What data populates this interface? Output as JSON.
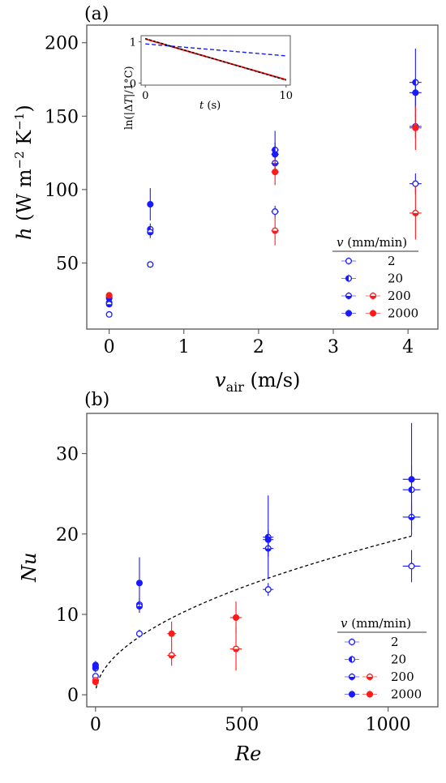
{
  "colors": {
    "blue": "#1a1aff",
    "red": "#ff1a1a",
    "axis": "#555555"
  },
  "chart_data": [
    {
      "panel": "(a)",
      "type": "scatter",
      "xlabel": "v_air (m/s)",
      "ylabel": "h (W m^-2 K^-1)",
      "xlim": [
        -0.3,
        4.4
      ],
      "ylim": [
        5,
        212
      ],
      "xticks": [
        0,
        1,
        2,
        3,
        4
      ],
      "yticks": [
        50,
        100,
        150,
        200
      ],
      "legend": {
        "title": "v (mm/min)",
        "position": "bottom-right",
        "entries": [
          "2",
          "20",
          "200",
          "2000"
        ]
      },
      "series": [
        {
          "name": "2",
          "marker": "open",
          "color": "blue",
          "points": [
            {
              "x": 0,
              "y": 15,
              "yerr": 1,
              "xerr": 0.03
            },
            {
              "x": 0.55,
              "y": 49,
              "yerr": 1,
              "xerr": 0.04
            },
            {
              "x": 2.22,
              "y": 85,
              "yerr": 4,
              "xerr": 0.05
            },
            {
              "x": 4.1,
              "y": 104,
              "yerr": 7,
              "xerr": 0.08
            }
          ]
        },
        {
          "name": "20",
          "marker": "left-half",
          "color": "blue",
          "points": [
            {
              "x": 0,
              "y": 23,
              "yerr": 2,
              "xerr": 0.03
            },
            {
              "x": 0.55,
              "y": 73,
              "yerr": 4,
              "xerr": 0.04
            },
            {
              "x": 2.22,
              "y": 127,
              "yerr": 13,
              "xerr": 0.05
            },
            {
              "x": 4.1,
              "y": 173,
              "yerr": 23,
              "xerr": 0.08
            }
          ]
        },
        {
          "name": "200",
          "marker": "bottom-half",
          "color": "blue",
          "points": [
            {
              "x": 0,
              "y": 22,
              "yerr": 2,
              "xerr": 0.03
            },
            {
              "x": 0.55,
              "y": 71,
              "yerr": 4,
              "xerr": 0.04
            },
            {
              "x": 2.22,
              "y": 118,
              "yerr": 6,
              "xerr": 0.05
            },
            {
              "x": 4.1,
              "y": 143,
              "yerr": 8,
              "xerr": 0.08
            }
          ]
        },
        {
          "name": "200",
          "marker": "bottom-half",
          "color": "red",
          "points": [
            {
              "x": 0,
              "y": 27,
              "yerr": 2,
              "xerr": 0.03
            },
            {
              "x": 2.22,
              "y": 72,
              "yerr": 10,
              "xerr": 0.05
            },
            {
              "x": 4.1,
              "y": 84,
              "yerr": 18,
              "xerr": 0.08
            }
          ]
        },
        {
          "name": "2000",
          "marker": "filled",
          "color": "blue",
          "points": [
            {
              "x": 0,
              "y": 26,
              "yerr": 2,
              "xerr": 0.03
            },
            {
              "x": 0.55,
              "y": 90,
              "yerr": 11,
              "xerr": 0.04
            },
            {
              "x": 2.22,
              "y": 124,
              "yerr": 8,
              "xerr": 0.05
            },
            {
              "x": 4.1,
              "y": 166,
              "yerr": 10,
              "xerr": 0.08
            }
          ]
        },
        {
          "name": "2000",
          "marker": "filled",
          "color": "red",
          "points": [
            {
              "x": 0,
              "y": 28,
              "yerr": 2,
              "xerr": 0.03
            },
            {
              "x": 2.22,
              "y": 112,
              "yerr": 9,
              "xerr": 0.05
            },
            {
              "x": 4.1,
              "y": 142,
              "yerr": 15,
              "xerr": 0.08
            }
          ]
        }
      ],
      "inset": {
        "type": "line",
        "xlabel": "t (s)",
        "ylabel": "ln(|ΔT|/1°C)",
        "xlim": [
          -0.3,
          10.3
        ],
        "ylim": [
          -0.05,
          1.15
        ],
        "xticks": [
          0,
          10
        ],
        "yticks": [
          0,
          1
        ],
        "series": [
          {
            "color": "red",
            "style": "solid",
            "x": [
              0,
              10
            ],
            "y": [
              1.07,
              0.08
            ]
          },
          {
            "color": "blue",
            "style": "dashed",
            "x": [
              0,
              10
            ],
            "y": [
              0.95,
              0.66
            ]
          },
          {
            "color": "black",
            "style": "dashed",
            "x": [
              0,
              10
            ],
            "y": [
              1.08,
              0.07
            ]
          }
        ]
      }
    },
    {
      "panel": "(b)",
      "type": "scatter",
      "xlabel": "Re",
      "ylabel": "Nu",
      "xlim": [
        -30,
        1170
      ],
      "ylim": [
        -1.5,
        35
      ],
      "xticks": [
        0,
        500,
        1000
      ],
      "yticks": [
        0,
        10,
        20,
        30
      ],
      "legend": {
        "title": "v (mm/min)",
        "position": "bottom-right",
        "entries": [
          "2",
          "20",
          "200",
          "2000"
        ]
      },
      "fit": {
        "style": "dashed",
        "color": "black",
        "form": "power",
        "coef": 0.56,
        "exponent": 0.51,
        "xrange": [
          2,
          1080
        ]
      },
      "series": [
        {
          "name": "2",
          "marker": "open",
          "color": "blue",
          "points": [
            {
              "x": 0,
              "y": 2.3,
              "yerr": 0.3,
              "xerr": 4
            },
            {
              "x": 150,
              "y": 7.6,
              "yerr": 0.5,
              "xerr": 6
            },
            {
              "x": 590,
              "y": 13.1,
              "yerr": 0.8,
              "xerr": 18
            },
            {
              "x": 1080,
              "y": 16.0,
              "yerr": 2.0,
              "xerr": 30
            }
          ]
        },
        {
          "name": "20",
          "marker": "left-half",
          "color": "blue",
          "points": [
            {
              "x": 0,
              "y": 3.3,
              "yerr": 0.5,
              "xerr": 4
            },
            {
              "x": 150,
              "y": 11.2,
              "yerr": 0.8,
              "xerr": 6
            },
            {
              "x": 590,
              "y": 19.6,
              "yerr": 5.2,
              "xerr": 18
            },
            {
              "x": 1080,
              "y": 25.5,
              "yerr": 3.0,
              "xerr": 30
            }
          ]
        },
        {
          "name": "200",
          "marker": "bottom-half",
          "color": "blue",
          "points": [
            {
              "x": 0,
              "y": 3.5,
              "yerr": 0.5,
              "xerr": 4
            },
            {
              "x": 150,
              "y": 11.0,
              "yerr": 0.8,
              "xerr": 6
            },
            {
              "x": 590,
              "y": 18.2,
              "yerr": 1.0,
              "xerr": 18
            },
            {
              "x": 1080,
              "y": 22.1,
              "yerr": 1.5,
              "xerr": 30
            }
          ]
        },
        {
          "name": "200",
          "marker": "bottom-half",
          "color": "red",
          "points": [
            {
              "x": 0,
              "y": 1.8,
              "yerr": 0.3,
              "xerr": 4
            },
            {
              "x": 260,
              "y": 4.9,
              "yerr": 1.3,
              "xerr": 15
            },
            {
              "x": 480,
              "y": 5.7,
              "yerr": 2.7,
              "xerr": 20
            }
          ]
        },
        {
          "name": "2000",
          "marker": "filled",
          "color": "blue",
          "points": [
            {
              "x": 0,
              "y": 3.7,
              "yerr": 0.5,
              "xerr": 4
            },
            {
              "x": 150,
              "y": 13.9,
              "yerr": 3.2,
              "xerr": 6
            },
            {
              "x": 590,
              "y": 19.3,
              "yerr": 1.2,
              "xerr": 18
            },
            {
              "x": 1080,
              "y": 26.8,
              "yerr": 7.0,
              "xerr": 30
            }
          ]
        },
        {
          "name": "2000",
          "marker": "filled",
          "color": "red",
          "points": [
            {
              "x": 0,
              "y": 1.6,
              "yerr": 0.3,
              "xerr": 4
            },
            {
              "x": 260,
              "y": 7.6,
              "yerr": 1.5,
              "xerr": 15
            },
            {
              "x": 480,
              "y": 9.6,
              "yerr": 2.0,
              "xerr": 20
            }
          ]
        }
      ]
    }
  ]
}
